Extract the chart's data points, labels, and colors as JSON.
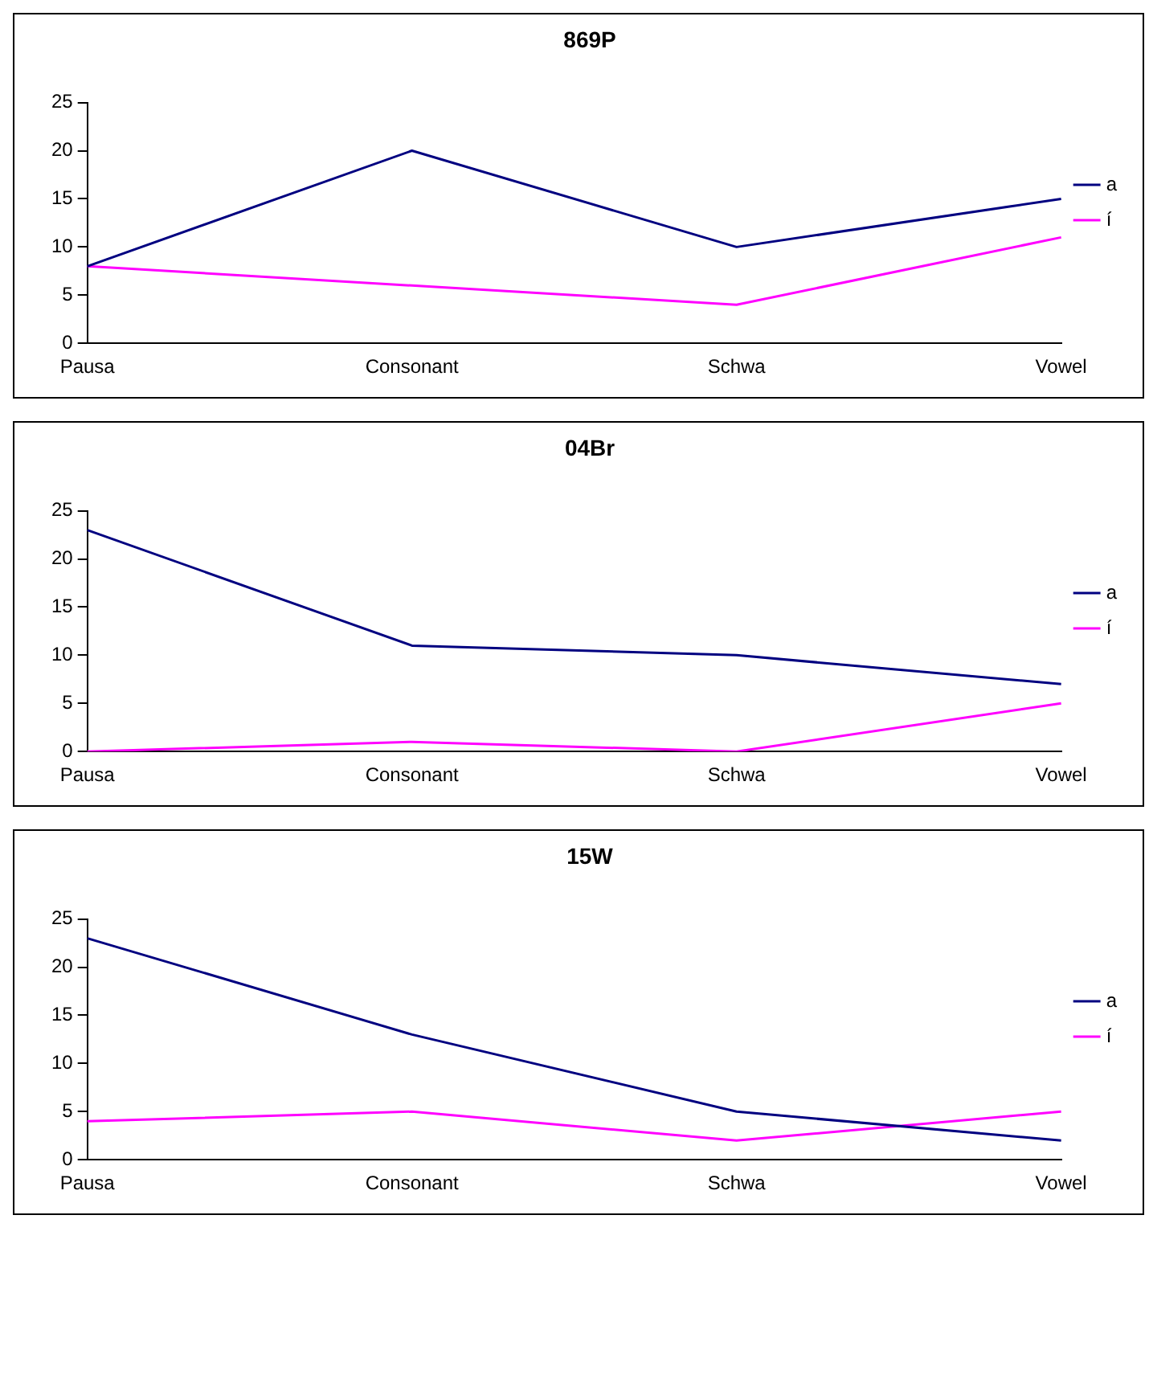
{
  "chart_data": [
    {
      "type": "line",
      "title": "869P",
      "categories": [
        "Pausa",
        "Consonant",
        "Schwa",
        "Vowel"
      ],
      "series": [
        {
          "name": "a",
          "color": "#000080",
          "values": [
            8,
            20,
            10,
            15
          ]
        },
        {
          "name": "í",
          "color": "#ff00ff",
          "values": [
            8,
            6,
            4,
            11
          ]
        }
      ],
      "ylim": [
        0,
        25
      ],
      "yticks": [
        0,
        5,
        10,
        15,
        20,
        25
      ],
      "grid": false,
      "legend": "right",
      "marker": "none"
    },
    {
      "type": "line",
      "title": "04Br",
      "categories": [
        "Pausa",
        "Consonant",
        "Schwa",
        "Vowel"
      ],
      "series": [
        {
          "name": "a",
          "color": "#000080",
          "values": [
            23,
            11,
            10,
            7
          ]
        },
        {
          "name": "í",
          "color": "#ff00ff",
          "values": [
            0,
            1,
            0,
            5
          ]
        }
      ],
      "ylim": [
        0,
        25
      ],
      "yticks": [
        0,
        5,
        10,
        15,
        20,
        25
      ],
      "grid": false,
      "legend": "right",
      "marker": "none"
    },
    {
      "type": "line",
      "title": "15W",
      "categories": [
        "Pausa",
        "Consonant",
        "Schwa",
        "Vowel"
      ],
      "series": [
        {
          "name": "a",
          "color": "#000080",
          "values": [
            23,
            13,
            5,
            2
          ]
        },
        {
          "name": "í",
          "color": "#ff00ff",
          "values": [
            4,
            5,
            2,
            5
          ]
        }
      ],
      "ylim": [
        0,
        25
      ],
      "yticks": [
        0,
        5,
        10,
        15,
        20,
        25
      ],
      "grid": false,
      "legend": "right",
      "marker": "none"
    }
  ]
}
